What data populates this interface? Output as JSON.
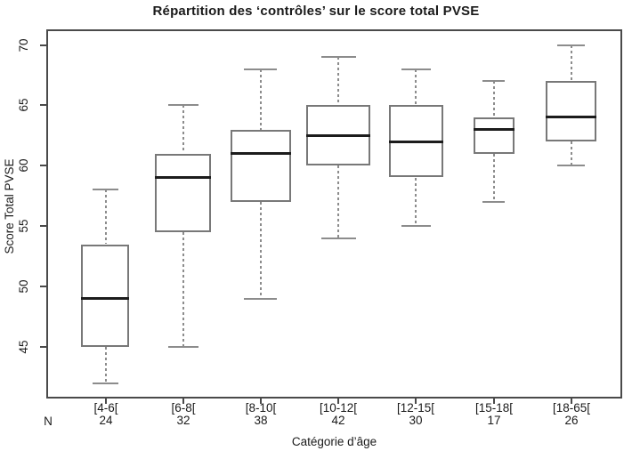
{
  "chart_data": {
    "type": "boxplot",
    "title": "Répartition des ‘contrôles’ sur le score total PVSE",
    "xlabel": "Catégorie d’âge",
    "ylabel": "Score Total PVSE",
    "n_row_label": "N",
    "ylim": [
      42,
      70
    ],
    "yticks": [
      45,
      50,
      55,
      60,
      65,
      70
    ],
    "grid": false,
    "varwidth": true,
    "categories": [
      "[4-6[",
      "[6-8[",
      "[8-10[",
      "[10-12[",
      "[12-15[",
      "[15-18[",
      "[18-65["
    ],
    "n_values": [
      24,
      32,
      38,
      42,
      30,
      17,
      26
    ],
    "series": [
      {
        "category": "[4-6[",
        "n": 24,
        "whisker_low": 42,
        "q1": 45,
        "median": 49,
        "q3": 53.5,
        "whisker_high": 58
      },
      {
        "category": "[6-8[",
        "n": 32,
        "whisker_low": 45,
        "q1": 54.5,
        "median": 59,
        "q3": 61,
        "whisker_high": 65
      },
      {
        "category": "[8-10[",
        "n": 38,
        "whisker_low": 49,
        "q1": 57,
        "median": 61,
        "q3": 63,
        "whisker_high": 68
      },
      {
        "category": "[10-12[",
        "n": 42,
        "whisker_low": 54,
        "q1": 60,
        "median": 62.5,
        "q3": 65,
        "whisker_high": 69
      },
      {
        "category": "[12-15[",
        "n": 30,
        "whisker_low": 55,
        "q1": 59,
        "median": 62,
        "q3": 65,
        "whisker_high": 68
      },
      {
        "category": "[15-18[",
        "n": 17,
        "whisker_low": 57,
        "q1": 61,
        "median": 63,
        "q3": 64,
        "whisker_high": 67
      },
      {
        "category": "[18-65[",
        "n": 26,
        "whisker_low": 60,
        "q1": 62,
        "median": 64,
        "q3": 67,
        "whisker_high": 70
      }
    ],
    "colors": {
      "background": "#ffffff",
      "axis": "#4a4a4a",
      "text": "#1a1a1a",
      "box_border": "#787878",
      "box_fill": "#ffffff",
      "median": "#1c1c1c",
      "whisker": "#8c8c8c"
    }
  }
}
